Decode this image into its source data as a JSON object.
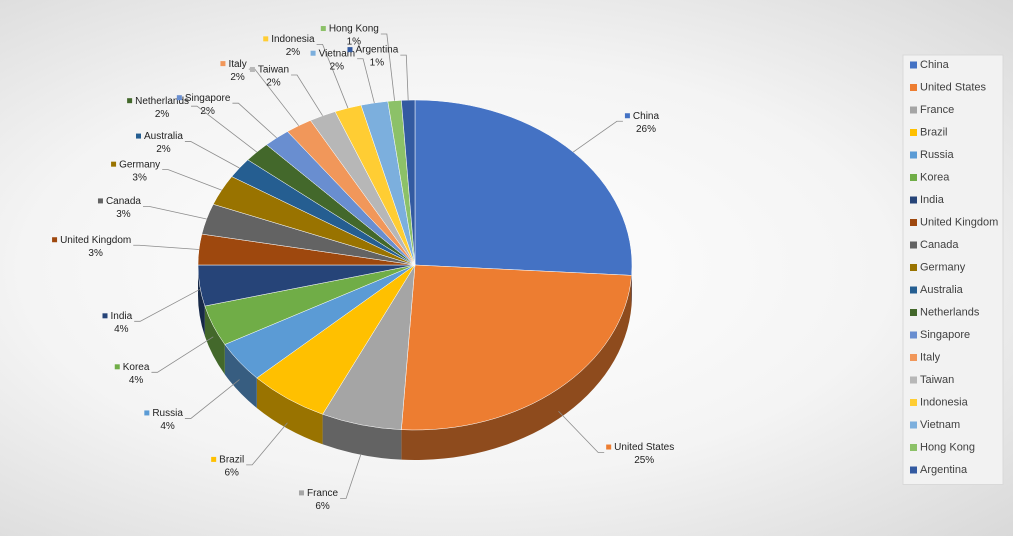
{
  "chart_data": {
    "type": "pie",
    "categories": [
      "China",
      "United States",
      "France",
      "Brazil",
      "Russia",
      "Korea",
      "India",
      "United Kingdom",
      "Canada",
      "Germany",
      "Australia",
      "Netherlands",
      "Singapore",
      "Italy",
      "Taiwan",
      "Indonesia",
      "Vietnam",
      "Hong Kong",
      "Argentina"
    ],
    "values": [
      26,
      25,
      6,
      6,
      4,
      4,
      4,
      3,
      3,
      3,
      2,
      2,
      2,
      2,
      2,
      2,
      2,
      1,
      1
    ],
    "value_labels": [
      "26%",
      "25%",
      "6%",
      "6%",
      "4%",
      "4%",
      "4%",
      "3%",
      "3%",
      "3%",
      "2%",
      "2%",
      "2%",
      "2%",
      "2%",
      "2%",
      "2%",
      "1%",
      "1%"
    ],
    "colors": [
      "#4472c4",
      "#ed7d31",
      "#a5a5a5",
      "#ffc000",
      "#5b9bd5",
      "#70ad47",
      "#264478",
      "#9e480e",
      "#636363",
      "#997300",
      "#255e91",
      "#43682b",
      "#698ed0",
      "#f1975a",
      "#b7b7b7",
      "#ffcd33",
      "#7cafdd",
      "#8cc168",
      "#335aa1"
    ],
    "legend": "right"
  }
}
